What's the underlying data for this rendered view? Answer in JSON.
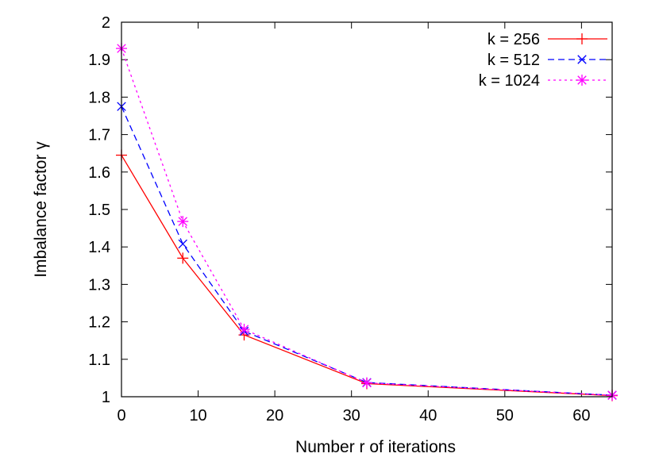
{
  "chart_data": {
    "type": "line",
    "xlabel": "Number r of iterations",
    "ylabel": "Imbalance factor γ",
    "xlim": [
      0,
      64
    ],
    "ylim": [
      1,
      2
    ],
    "xticks": [
      0,
      10,
      20,
      30,
      40,
      50,
      60
    ],
    "yticks": [
      1,
      1.1,
      1.2,
      1.3,
      1.4,
      1.5,
      1.6,
      1.7,
      1.8,
      1.9,
      2
    ],
    "grid": false,
    "legend_position": "top-right",
    "series": [
      {
        "name": "k = 256",
        "color": "#ff0000",
        "line_style": "solid",
        "marker": "plus",
        "x": [
          0,
          8,
          16,
          32,
          64
        ],
        "y": [
          1.645,
          1.37,
          1.165,
          1.035,
          1.003
        ]
      },
      {
        "name": "k = 512",
        "color": "#0000ff",
        "line_style": "dashed",
        "marker": "cross",
        "x": [
          0,
          8,
          16,
          32,
          64
        ],
        "y": [
          1.775,
          1.408,
          1.175,
          1.038,
          1.004
        ]
      },
      {
        "name": "k = 1024",
        "color": "#ff00ff",
        "line_style": "dotted",
        "marker": "star",
        "x": [
          0,
          8,
          16,
          32,
          64
        ],
        "y": [
          1.93,
          1.468,
          1.18,
          1.037,
          1.004
        ]
      }
    ]
  }
}
